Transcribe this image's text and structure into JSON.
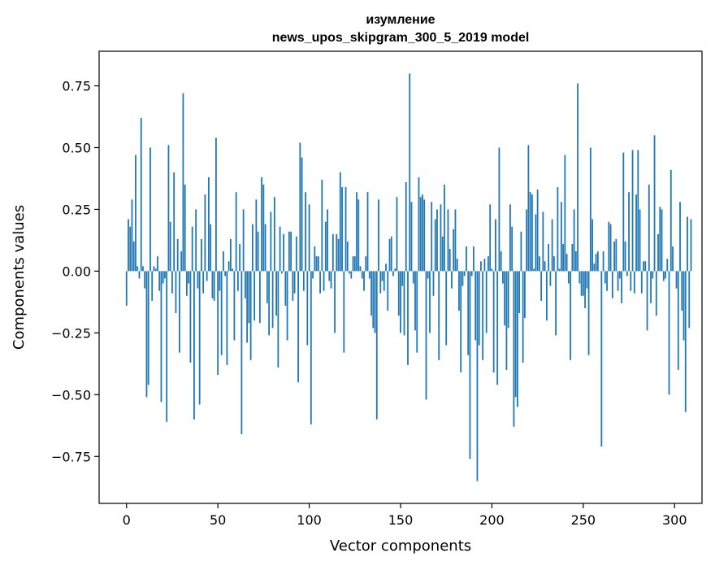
{
  "chart_data": {
    "type": "bar",
    "title_line1": "изумление",
    "title_line2": "news_upos_skipgram_300_5_2019 model",
    "xlabel": "Vector components",
    "ylabel": "Components values",
    "xlim": [
      -15,
      315
    ],
    "ylim": [
      -0.94,
      0.89
    ],
    "xticks": [
      0,
      50,
      100,
      150,
      200,
      250,
      300
    ],
    "yticks": [
      -0.75,
      -0.5,
      -0.25,
      0.0,
      0.25,
      0.5,
      0.75
    ],
    "ytick_labels": [
      "−0.75",
      "−0.50",
      "−0.25",
      "0.00",
      "0.25",
      "0.50",
      "0.75"
    ],
    "bar_color": "#1f77b4",
    "grid": false,
    "values": [
      -0.14,
      0.21,
      0.18,
      0.29,
      0.12,
      0.47,
      0.02,
      -0.03,
      0.62,
      0.02,
      -0.07,
      -0.51,
      -0.46,
      0.5,
      -0.12,
      0.02,
      0.01,
      0.06,
      -0.08,
      -0.53,
      -0.05,
      -0.03,
      -0.61,
      0.51,
      0.2,
      -0.09,
      0.4,
      -0.17,
      0.13,
      -0.33,
      0.08,
      0.72,
      0.35,
      -0.1,
      -0.05,
      -0.37,
      0.18,
      -0.6,
      0.25,
      -0.07,
      -0.54,
      0.13,
      -0.09,
      0.31,
      -0.04,
      0.38,
      0.19,
      -0.11,
      -0.12,
      0.54,
      -0.42,
      -0.08,
      -0.34,
      0.08,
      -0.02,
      -0.38,
      0.04,
      0.13,
      0.01,
      -0.28,
      0.32,
      -0.08,
      0.11,
      -0.66,
      0.25,
      -0.11,
      -0.29,
      -0.21,
      -0.36,
      0.19,
      -0.2,
      0.29,
      0.16,
      -0.21,
      0.38,
      0.35,
      0.19,
      -0.13,
      -0.26,
      0.24,
      -0.23,
      0.3,
      -0.18,
      -0.39,
      0.18,
      -0.01,
      0.15,
      -0.14,
      -0.28,
      0.16,
      0.16,
      -0.12,
      -0.09,
      0.14,
      -0.45,
      0.52,
      0.46,
      -0.08,
      0.32,
      -0.3,
      0.27,
      -0.62,
      -0.03,
      0.1,
      0.06,
      0.06,
      -0.09,
      0.37,
      -0.08,
      0.2,
      0.25,
      -0.04,
      -0.07,
      0.15,
      -0.25,
      0.15,
      0.13,
      0.4,
      0.34,
      -0.33,
      0.34,
      0.12,
      -0.01,
      -0.03,
      0.06,
      0.06,
      0.32,
      0.29,
      0.02,
      -0.03,
      -0.08,
      0.06,
      0.32,
      -0.03,
      -0.18,
      -0.23,
      -0.25,
      -0.6,
      0.29,
      -0.09,
      -0.04,
      -0.08,
      0.03,
      -0.16,
      0.13,
      0.14,
      -0.02,
      0.01,
      0.3,
      -0.18,
      -0.25,
      -0.06,
      -0.26,
      0.36,
      -0.38,
      0.8,
      0.28,
      -0.05,
      -0.24,
      -0.33,
      0.38,
      0.3,
      0.31,
      0.29,
      -0.52,
      -0.03,
      -0.25,
      0.28,
      -0.1,
      0.21,
      0.25,
      -0.36,
      0.27,
      0.14,
      0.35,
      -0.3,
      0.25,
      0.09,
      -0.07,
      0.17,
      0.25,
      0.05,
      -0.16,
      -0.41,
      -0.06,
      -0.02,
      0.1,
      -0.34,
      -0.76,
      -0.02,
      0.1,
      -0.28,
      -0.85,
      -0.3,
      0.04,
      -0.36,
      0.05,
      -0.25,
      0.06,
      0.27,
      0.01,
      -0.41,
      0.21,
      -0.46,
      0.5,
      0.08,
      -0.05,
      -0.22,
      -0.4,
      -0.23,
      0.27,
      0.18,
      -0.63,
      -0.51,
      -0.55,
      -0.17,
      0.16,
      -0.37,
      -0.19,
      0.25,
      0.51,
      0.32,
      0.31,
      0.01,
      0.23,
      0.33,
      0.06,
      -0.12,
      0.24,
      0.04,
      -0.2,
      0.11,
      -0.06,
      0.21,
      0.06,
      -0.26,
      0.34,
      0.01,
      0.28,
      0.11,
      0.47,
      0.07,
      -0.05,
      -0.36,
      0.11,
      0.25,
      0.08,
      0.76,
      -0.05,
      -0.1,
      -0.1,
      -0.15,
      -0.07,
      -0.34,
      0.5,
      0.21,
      0.03,
      0.07,
      0.08,
      0.0,
      -0.71,
      0.08,
      -0.05,
      -0.08,
      0.2,
      0.19,
      -0.11,
      0.12,
      0.13,
      -0.08,
      -0.03,
      -0.13,
      0.48,
      0.12,
      -0.02,
      0.32,
      -0.08,
      0.49,
      -0.09,
      0.31,
      0.49,
      0.25,
      -0.09,
      0.04,
      0.04,
      -0.24,
      0.35,
      -0.13,
      -0.03,
      0.55,
      -0.18,
      0.15,
      0.26,
      0.25,
      -0.04,
      -0.03,
      0.05,
      -0.5,
      0.41,
      0.1,
      0.0,
      -0.07,
      -0.4,
      0.28,
      -0.16,
      -0.28,
      -0.57,
      0.22,
      -0.23,
      0.21
    ]
  }
}
